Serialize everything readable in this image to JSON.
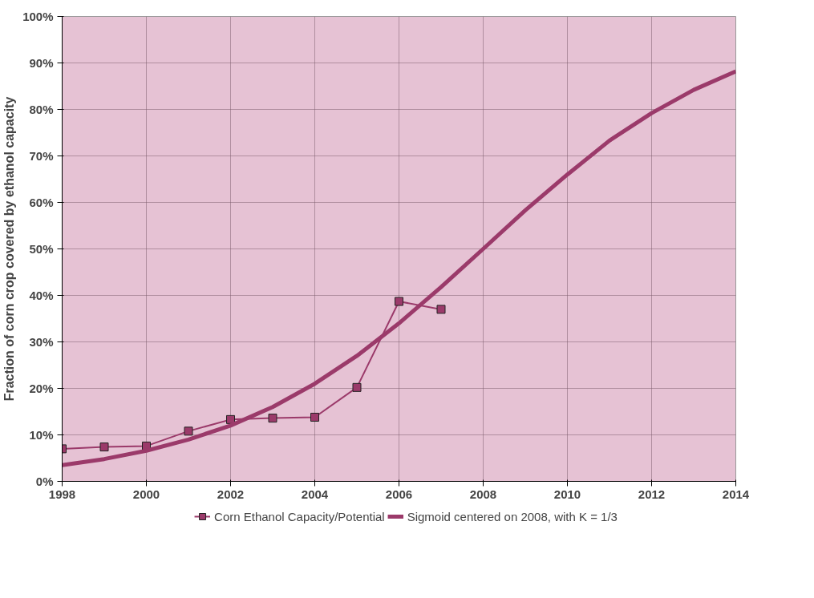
{
  "chart_data": {
    "type": "line",
    "ylabel": "Fraction of corn crop covered by ethanol capacity",
    "x": [
      1998,
      1999,
      2000,
      2001,
      2002,
      2003,
      2004,
      2005,
      2006,
      2007,
      2008,
      2009,
      2010,
      2011,
      2012,
      2013,
      2014
    ],
    "series": [
      {
        "name": "Corn Ethanol Capacity/Potential",
        "color": "#9b3a6a",
        "marker": "square",
        "x": [
          1998,
          1999,
          2000,
          2001,
          2002,
          2003,
          2004,
          2005,
          2006,
          2007
        ],
        "values": [
          7.0,
          7.4,
          7.6,
          10.8,
          13.3,
          13.6,
          13.8,
          20.2,
          38.7,
          37.0
        ]
      },
      {
        "name": "Sigmoid centered on 2008, with K = 1/3",
        "color": "#9b3a6a",
        "marker": "none",
        "values": [
          3.5,
          4.8,
          6.6,
          9.0,
          12.0,
          16.0,
          21.0,
          27.0,
          34.0,
          41.8,
          50.0,
          58.3,
          66.0,
          73.3,
          79.2,
          84.2,
          88.2
        ]
      }
    ],
    "xlim": [
      1998,
      2014
    ],
    "xticks": [
      1998,
      2000,
      2002,
      2004,
      2006,
      2008,
      2010,
      2012,
      2014
    ],
    "ylim": [
      0,
      100
    ],
    "yticks": [
      {
        "value": 0,
        "label": "0%"
      },
      {
        "value": 10,
        "label": "10%"
      },
      {
        "value": 20,
        "label": "20%"
      },
      {
        "value": 30,
        "label": "30%"
      },
      {
        "value": 40,
        "label": "40%"
      },
      {
        "value": 50,
        "label": "50%"
      },
      {
        "value": 60,
        "label": "60%"
      },
      {
        "value": 70,
        "label": "70%"
      },
      {
        "value": 80,
        "label": "80%"
      },
      {
        "value": 90,
        "label": "90%"
      },
      {
        "value": 100,
        "label": "100%"
      }
    ],
    "grid": true,
    "legend": "bottom",
    "line_style": "solid"
  }
}
